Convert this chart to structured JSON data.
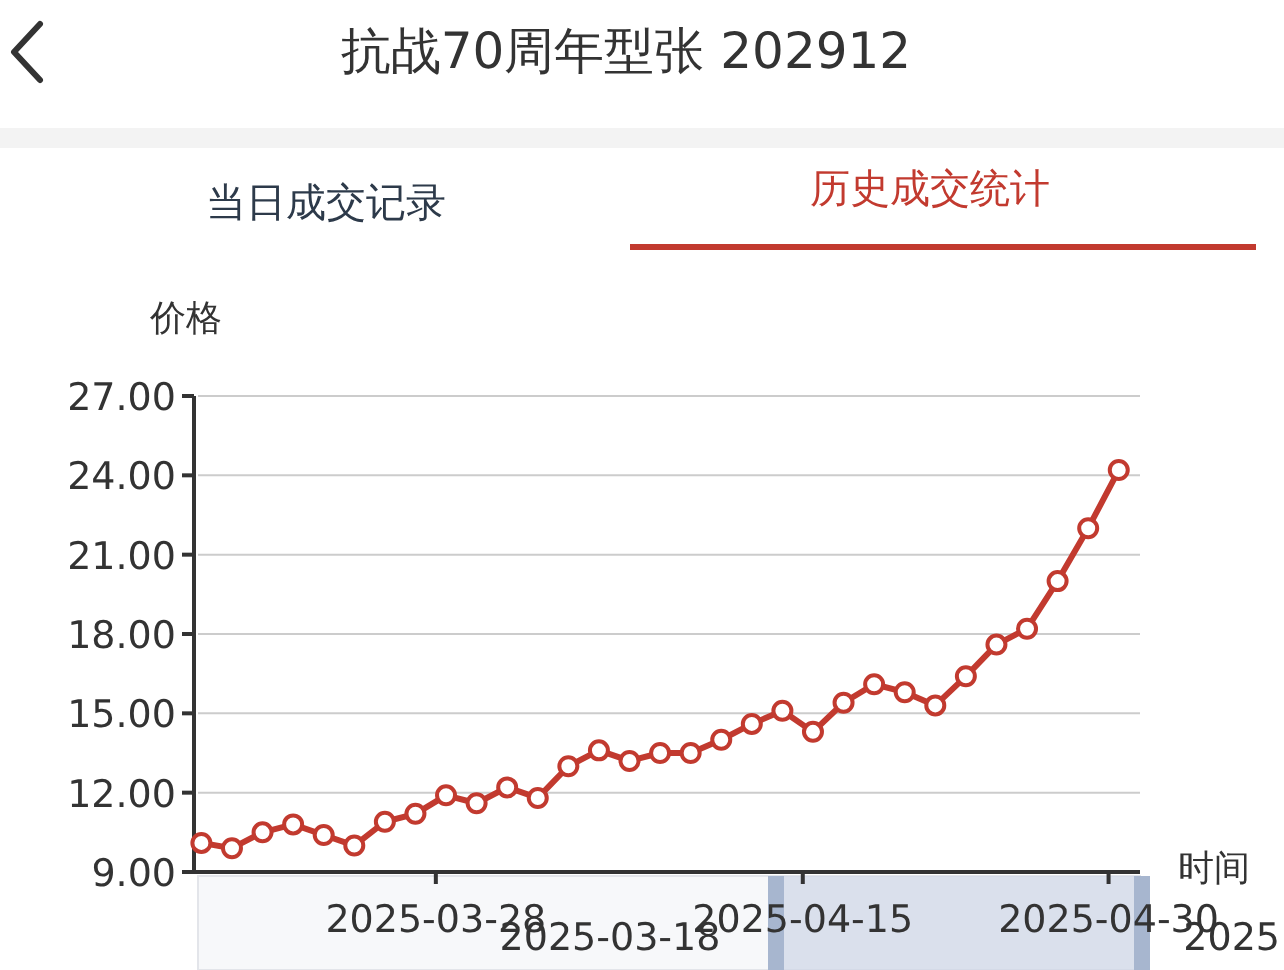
{
  "chart_data": {
    "type": "line",
    "title": "抗战70周年型张 202912",
    "ylabel": "价格",
    "xlabel": "时间",
    "annotations": [
      "当日成交记录",
      "历史成交统计",
      "2025-03-18",
      "2025"
    ],
    "x": [
      "2025-03-16T12:00",
      "2025-03-18T00:00",
      "2025-03-19T12:00",
      "2025-03-21T00:00",
      "2025-03-22T12:00",
      "2025-03-24T00:00",
      "2025-03-25T12:00",
      "2025-03-27T00:00",
      "2025-03-28T12:00",
      "2025-03-30T00:00",
      "2025-03-31T12:00",
      "2025-04-02T00:00",
      "2025-04-03T12:00",
      "2025-04-05T00:00",
      "2025-04-06T12:00",
      "2025-04-08T00:00",
      "2025-04-09T12:00",
      "2025-04-11T00:00",
      "2025-04-12T12:00",
      "2025-04-14T00:00",
      "2025-04-15T12:00",
      "2025-04-17T00:00",
      "2025-04-18T12:00",
      "2025-04-20T00:00",
      "2025-04-21T12:00",
      "2025-04-23T00:00",
      "2025-04-24T12:00",
      "2025-04-26T00:00",
      "2025-04-27T12:00",
      "2025-04-29T00:00",
      "2025-04-30T12:00"
    ],
    "series": [
      {
        "color": "#c23a2f",
        "values": [
          10.1,
          9.9,
          10.5,
          10.8,
          10.4,
          10.0,
          10.9,
          11.2,
          11.9,
          11.6,
          12.2,
          11.8,
          13.0,
          13.6,
          13.2,
          13.5,
          13.5,
          14.0,
          14.6,
          15.1,
          14.3,
          15.4,
          16.1,
          15.8,
          15.3,
          16.4,
          17.6,
          18.2,
          20.0,
          22.0,
          24.2
        ]
      }
    ],
    "xlim": [
      "2025-03-16T08:00",
      "2025-05-01T13:00"
    ],
    "xticks": [
      {
        "value": "2025-03-28",
        "label": "2025-03-28"
      },
      {
        "value": "2025-04-15",
        "label": "2025-04-15"
      },
      {
        "value": "2025-04-30",
        "label": "2025-04-30"
      }
    ],
    "ylim": [
      9,
      27
    ],
    "yticks": [
      {
        "value": 9,
        "label": "9.00"
      },
      {
        "value": 12,
        "label": "12.00"
      },
      {
        "value": 15,
        "label": "15.00"
      },
      {
        "value": 18,
        "label": "18.00"
      },
      {
        "value": 21,
        "label": "21.00"
      },
      {
        "value": 24,
        "label": "24.00"
      },
      {
        "value": 27,
        "label": "27.00"
      }
    ],
    "grid": "y",
    "marker": "circle",
    "line_style": "solid"
  }
}
